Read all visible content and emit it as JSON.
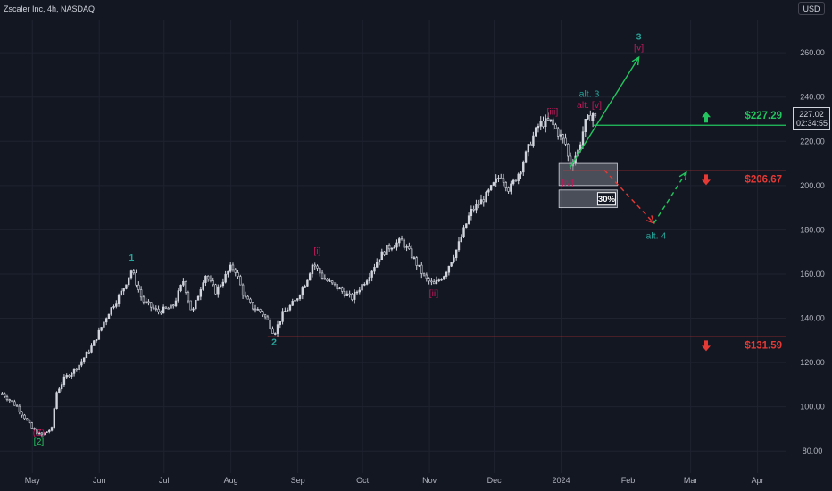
{
  "header": {
    "title": "Zscaler Inc, 4h, NASDAQ",
    "currency": "USD"
  },
  "last_price": {
    "price": "227.02",
    "countdown": "02:34:55"
  },
  "colors": {
    "background": "#131722",
    "up_candle": "#d1d4dc",
    "grid": "#1f2330",
    "green": "#22c55e",
    "red": "#e53935",
    "teal_label": "#26a69a",
    "magenta_label": "#c2185b",
    "gray_box": "#787b86"
  },
  "chart_data": {
    "type": "candlestick",
    "ylim": [
      70,
      275
    ],
    "y_ticks": [
      80,
      100,
      120,
      140,
      160,
      180,
      200,
      220,
      240,
      260
    ],
    "x_ticks": [
      {
        "label": "May",
        "date": "2023-05-01"
      },
      {
        "label": "Jun",
        "date": "2023-06-01"
      },
      {
        "label": "Jul",
        "date": "2023-07-01"
      },
      {
        "label": "Aug",
        "date": "2023-08-01"
      },
      {
        "label": "Sep",
        "date": "2023-09-01"
      },
      {
        "label": "Oct",
        "date": "2023-10-01"
      },
      {
        "label": "Nov",
        "date": "2023-11-01"
      },
      {
        "label": "Dec",
        "date": "2023-12-01"
      },
      {
        "label": "2024",
        "date": "2024-01-01"
      },
      {
        "label": "Feb",
        "date": "2024-02-01"
      },
      {
        "label": "Mar",
        "date": "2024-03-01"
      },
      {
        "label": "Apr",
        "date": "2024-04-01"
      }
    ],
    "x_range": [
      "2023-04-16",
      "2024-04-14"
    ],
    "price_path": [
      [
        "2023-04-17",
        106
      ],
      [
        "2023-04-24",
        100
      ],
      [
        "2023-05-01",
        90
      ],
      [
        "2023-05-05",
        87
      ],
      [
        "2023-05-08",
        89
      ],
      [
        "2023-05-10",
        90
      ],
      [
        "2023-05-12",
        106
      ],
      [
        "2023-05-16",
        113
      ],
      [
        "2023-05-22",
        118
      ],
      [
        "2023-05-29",
        128
      ],
      [
        "2023-06-05",
        142
      ],
      [
        "2023-06-12",
        153
      ],
      [
        "2023-06-16",
        162
      ],
      [
        "2023-06-21",
        148
      ],
      [
        "2023-06-28",
        143
      ],
      [
        "2023-07-05",
        145
      ],
      [
        "2023-07-10",
        157
      ],
      [
        "2023-07-14",
        142
      ],
      [
        "2023-07-20",
        160
      ],
      [
        "2023-07-25",
        152
      ],
      [
        "2023-08-01",
        163
      ],
      [
        "2023-08-03",
        162
      ],
      [
        "2023-08-07",
        150
      ],
      [
        "2023-08-11",
        145
      ],
      [
        "2023-08-15",
        143
      ],
      [
        "2023-08-18",
        139
      ],
      [
        "2023-08-21",
        133
      ],
      [
        "2023-08-25",
        142
      ],
      [
        "2023-08-31",
        148
      ],
      [
        "2023-09-05",
        157
      ],
      [
        "2023-09-08",
        165
      ],
      [
        "2023-09-13",
        158
      ],
      [
        "2023-09-19",
        154
      ],
      [
        "2023-09-26",
        149
      ],
      [
        "2023-10-03",
        158
      ],
      [
        "2023-10-09",
        168
      ],
      [
        "2023-10-13",
        172
      ],
      [
        "2023-10-19",
        175
      ],
      [
        "2023-10-24",
        168
      ],
      [
        "2023-10-30",
        158
      ],
      [
        "2023-11-03",
        155
      ],
      [
        "2023-11-08",
        160
      ],
      [
        "2023-11-14",
        172
      ],
      [
        "2023-11-20",
        188
      ],
      [
        "2023-11-27",
        195
      ],
      [
        "2023-12-04",
        205
      ],
      [
        "2023-12-08",
        198
      ],
      [
        "2023-12-13",
        207
      ],
      [
        "2023-12-18",
        220
      ],
      [
        "2023-12-22",
        228
      ],
      [
        "2023-12-27",
        229
      ],
      [
        "2024-01-03",
        219
      ],
      [
        "2024-01-05",
        209
      ],
      [
        "2024-01-09",
        216
      ],
      [
        "2024-01-12",
        228
      ],
      [
        "2024-01-16",
        233
      ],
      [
        "2024-01-18",
        227
      ]
    ],
    "levels": [
      {
        "price": 227.29,
        "label": "$227.29",
        "color": "green",
        "start": "2024-01-16",
        "arrow": "up"
      },
      {
        "price": 206.67,
        "label": "$206.67",
        "color": "red",
        "start": "2024-01-02",
        "arrow": "down"
      },
      {
        "price": 131.59,
        "label": "$131.59",
        "color": "red",
        "start": "2023-08-18",
        "arrow": "down"
      }
    ],
    "zones": [
      {
        "start": "2023-12-31",
        "end": "2024-01-27",
        "top": 210,
        "bottom": 200
      },
      {
        "start": "2023-12-31",
        "end": "2024-01-27",
        "top": 198,
        "bottom": 190,
        "label": "30%"
      }
    ],
    "projections": [
      {
        "color": "green",
        "dashed": false,
        "points": [
          [
            "2024-01-05",
            208
          ],
          [
            "2024-02-06",
            258
          ]
        ]
      },
      {
        "color": "red",
        "dashed": true,
        "points": [
          [
            "2024-01-21",
            207
          ],
          [
            "2024-02-13",
            183
          ]
        ]
      },
      {
        "color": "green",
        "dashed": true,
        "points": [
          [
            "2024-02-13",
            183
          ],
          [
            "2024-02-28",
            206
          ]
        ]
      }
    ],
    "wave_labels": [
      {
        "text": "[2]",
        "date": "2023-05-04",
        "price": 83,
        "color": "green"
      },
      {
        "text": "(Z)",
        "date": "2023-05-04",
        "price": 87,
        "color": "magenta"
      },
      {
        "text": "1",
        "date": "2023-06-16",
        "price": 166,
        "color": "teal"
      },
      {
        "text": "2",
        "date": "2023-08-21",
        "price": 128,
        "color": "teal"
      },
      {
        "text": "[i]",
        "date": "2023-09-10",
        "price": 169,
        "color": "magenta"
      },
      {
        "text": "[ii]",
        "date": "2023-11-03",
        "price": 150,
        "color": "magenta"
      },
      {
        "text": "[iii]",
        "date": "2023-12-28",
        "price": 232,
        "color": "magenta"
      },
      {
        "text": "[iv]",
        "date": "2024-01-04",
        "price": 200,
        "color": "magenta"
      },
      {
        "text": "alt. 3",
        "date": "2024-01-14",
        "price": 240,
        "color": "teal"
      },
      {
        "text": "alt. [v]",
        "date": "2024-01-14",
        "price": 235,
        "color": "magenta"
      },
      {
        "text": "3",
        "date": "2024-02-06",
        "price": 266,
        "color": "teal"
      },
      {
        "text": "[v]",
        "date": "2024-02-06",
        "price": 261,
        "color": "magenta"
      },
      {
        "text": "alt. 4",
        "date": "2024-02-14",
        "price": 176,
        "color": "teal"
      }
    ]
  }
}
